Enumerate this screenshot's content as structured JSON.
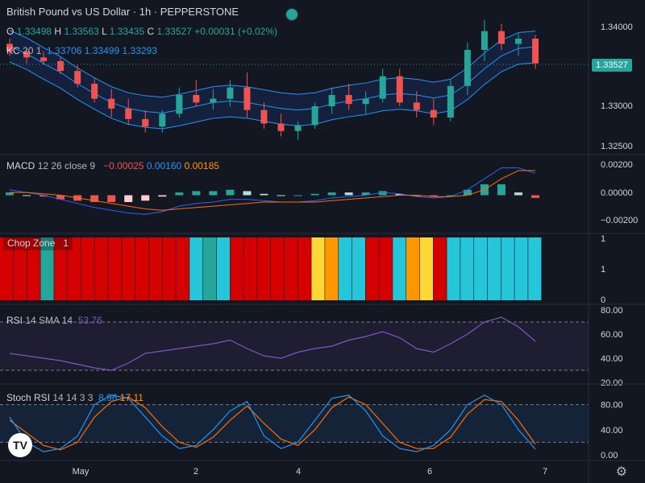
{
  "header": {
    "title": "British Pound vs US Dollar · 1h · PEPPERSTONE",
    "ohlc": {
      "o_label": "O",
      "o": "1.33498",
      "h_label": "H",
      "h": "1.33563",
      "l_label": "L",
      "l": "1.33435",
      "c_label": "C",
      "c": "1.33527",
      "change": "+0.00031 (+0.02%)"
    },
    "kc": {
      "name": "KC",
      "params": "20 1",
      "v1": "1.33706",
      "v2": "1.33499",
      "v3": "1.33293"
    }
  },
  "price_axis": {
    "ticks": [
      "1.34000",
      "1.33000",
      "1.32500"
    ],
    "current": "1.33527"
  },
  "macd": {
    "name": "MACD",
    "params": "12 26 close 9",
    "hist": "−0.00025",
    "macd": "0.00160",
    "signal": "0.00185",
    "ticks": [
      "0.00200",
      "0.00000",
      "−0.00200"
    ]
  },
  "chop": {
    "name": "Chop Zone",
    "value": "1",
    "ticks": [
      "1",
      "1",
      "0"
    ]
  },
  "rsi": {
    "name": "RSI",
    "params": "14 SMA 14",
    "value": "53.76",
    "ticks": [
      "80.00",
      "60.00",
      "40.00",
      "20.00"
    ]
  },
  "stoch": {
    "name": "Stoch RSI",
    "params": "14 14 3 3",
    "k": "8.96",
    "d": "17.11",
    "ticks": [
      "80.00",
      "40.00",
      "0.00"
    ]
  },
  "time_axis": {
    "labels": [
      "May",
      "2",
      "4",
      "6",
      "7"
    ]
  },
  "colors": {
    "bg": "#131722",
    "up": "#26a69a",
    "down": "#ef5350",
    "kc": "#2962ff",
    "macd": "#2962ff",
    "signal": "#ff6d00",
    "rsi": "#7e57c2",
    "stoch_k": "#2196f3",
    "stoch_d": "#ff6d00",
    "chop_red": "#d50000",
    "chop_cyan": "#26c6da",
    "chop_teal": "#26a69a",
    "chop_orange": "#ff9800",
    "chop_yellow": "#fdd835"
  },
  "logo_text": "TV",
  "chart_data": {
    "type": "candlestick",
    "price_range": [
      1.3235,
      1.3415
    ],
    "candles_ohlc_sampled": [
      [
        1.3378,
        1.3385,
        1.3362,
        1.3368
      ],
      [
        1.3368,
        1.3372,
        1.3352,
        1.336
      ],
      [
        1.336,
        1.3368,
        1.335,
        1.3355
      ],
      [
        1.3355,
        1.336,
        1.3338,
        1.3342
      ],
      [
        1.3342,
        1.335,
        1.332,
        1.3325
      ],
      [
        1.3325,
        1.3332,
        1.33,
        1.3305
      ],
      [
        1.3305,
        1.3318,
        1.328,
        1.3292
      ],
      [
        1.3292,
        1.3305,
        1.327,
        1.3278
      ],
      [
        1.3278,
        1.329,
        1.326,
        1.3268
      ],
      [
        1.3268,
        1.329,
        1.326,
        1.3285
      ],
      [
        1.3285,
        1.332,
        1.328,
        1.331
      ],
      [
        1.331,
        1.333,
        1.3295,
        1.33
      ],
      [
        1.33,
        1.3318,
        1.329,
        1.3305
      ],
      [
        1.3305,
        1.333,
        1.3295,
        1.332
      ],
      [
        1.332,
        1.334,
        1.328,
        1.329
      ],
      [
        1.329,
        1.33,
        1.3265,
        1.3272
      ],
      [
        1.3272,
        1.3285,
        1.3255,
        1.3262
      ],
      [
        1.3262,
        1.3275,
        1.325,
        1.327
      ],
      [
        1.327,
        1.33,
        1.3265,
        1.3295
      ],
      [
        1.3295,
        1.332,
        1.3285,
        1.331
      ],
      [
        1.331,
        1.3325,
        1.329,
        1.3298
      ],
      [
        1.3298,
        1.3315,
        1.3285,
        1.3305
      ],
      [
        1.3305,
        1.3345,
        1.33,
        1.3335
      ],
      [
        1.3335,
        1.3345,
        1.3295,
        1.33
      ],
      [
        1.33,
        1.3315,
        1.328,
        1.329
      ],
      [
        1.329,
        1.3305,
        1.327,
        1.328
      ],
      [
        1.328,
        1.333,
        1.3275,
        1.3322
      ],
      [
        1.3322,
        1.338,
        1.331,
        1.337
      ],
      [
        1.337,
        1.341,
        1.3355,
        1.3395
      ],
      [
        1.3395,
        1.3405,
        1.337,
        1.3378
      ],
      [
        1.3378,
        1.3392,
        1.3362,
        1.3385
      ],
      [
        1.3385,
        1.339,
        1.3345,
        1.3352
      ]
    ],
    "kc_middle": [
      1.3375,
      1.3365,
      1.3352,
      1.334,
      1.3325,
      1.3312,
      1.33,
      1.3292,
      1.3288,
      1.3286,
      1.329,
      1.3295,
      1.33,
      1.3302,
      1.33,
      1.3296,
      1.3292,
      1.329,
      1.3292,
      1.3298,
      1.3302,
      1.3305,
      1.331,
      1.3312,
      1.331,
      1.3306,
      1.331,
      1.3325,
      1.3345,
      1.3362,
      1.3372,
      1.3374
    ],
    "macd_line": [
      0.0004,
      0.0002,
      0.0,
      -0.0003,
      -0.0006,
      -0.0009,
      -0.0011,
      -0.0013,
      -0.0014,
      -0.0012,
      -0.0008,
      -0.0006,
      -0.0005,
      -0.0003,
      -0.0003,
      -0.0004,
      -0.0005,
      -0.0005,
      -0.0004,
      -0.0002,
      -0.0001,
      0.0,
      0.0002,
      0.0001,
      -0.0001,
      -0.0002,
      -0.0001,
      0.0004,
      0.0012,
      0.002,
      0.002,
      0.0016
    ],
    "signal_line": [
      0.0002,
      0.0002,
      0.0001,
      0.0,
      -0.0002,
      -0.0004,
      -0.0006,
      -0.0008,
      -0.001,
      -0.0011,
      -0.001,
      -0.0009,
      -0.0008,
      -0.0007,
      -0.0006,
      -0.0005,
      -0.0005,
      -0.0005,
      -0.0005,
      -0.0004,
      -0.0003,
      -0.0002,
      -0.0001,
      0.0,
      0.0,
      -0.0001,
      -0.0001,
      0.0,
      0.0004,
      0.0012,
      0.0018,
      0.0018
    ],
    "rsi": [
      44,
      42,
      40,
      38,
      35,
      32,
      30,
      36,
      44,
      46,
      48,
      50,
      52,
      55,
      48,
      42,
      40,
      45,
      48,
      50,
      55,
      58,
      62,
      57,
      48,
      45,
      52,
      60,
      70,
      74,
      66,
      54
    ],
    "rsi_range": [
      20,
      80
    ],
    "stoch_k": [
      60,
      20,
      5,
      10,
      30,
      80,
      95,
      90,
      60,
      30,
      10,
      15,
      40,
      70,
      85,
      30,
      10,
      20,
      55,
      90,
      95,
      70,
      30,
      10,
      5,
      15,
      40,
      80,
      95,
      80,
      40,
      9
    ],
    "stoch_d": [
      55,
      35,
      15,
      8,
      20,
      60,
      85,
      92,
      75,
      45,
      20,
      12,
      28,
      55,
      78,
      50,
      25,
      15,
      40,
      75,
      92,
      80,
      50,
      20,
      10,
      10,
      28,
      65,
      88,
      85,
      55,
      17
    ],
    "chop_zones": [
      "red",
      "red",
      "red",
      "teal",
      "red",
      "red",
      "red",
      "red",
      "red",
      "red",
      "red",
      "red",
      "red",
      "red",
      "cyan",
      "teal",
      "cyan",
      "red",
      "red",
      "red",
      "red",
      "red",
      "red",
      "yellow",
      "orange",
      "cyan",
      "cyan",
      "red",
      "red",
      "cyan",
      "orange",
      "yellow",
      "red",
      "cyan",
      "cyan",
      "cyan",
      "cyan",
      "cyan",
      "cyan",
      "cyan"
    ]
  }
}
